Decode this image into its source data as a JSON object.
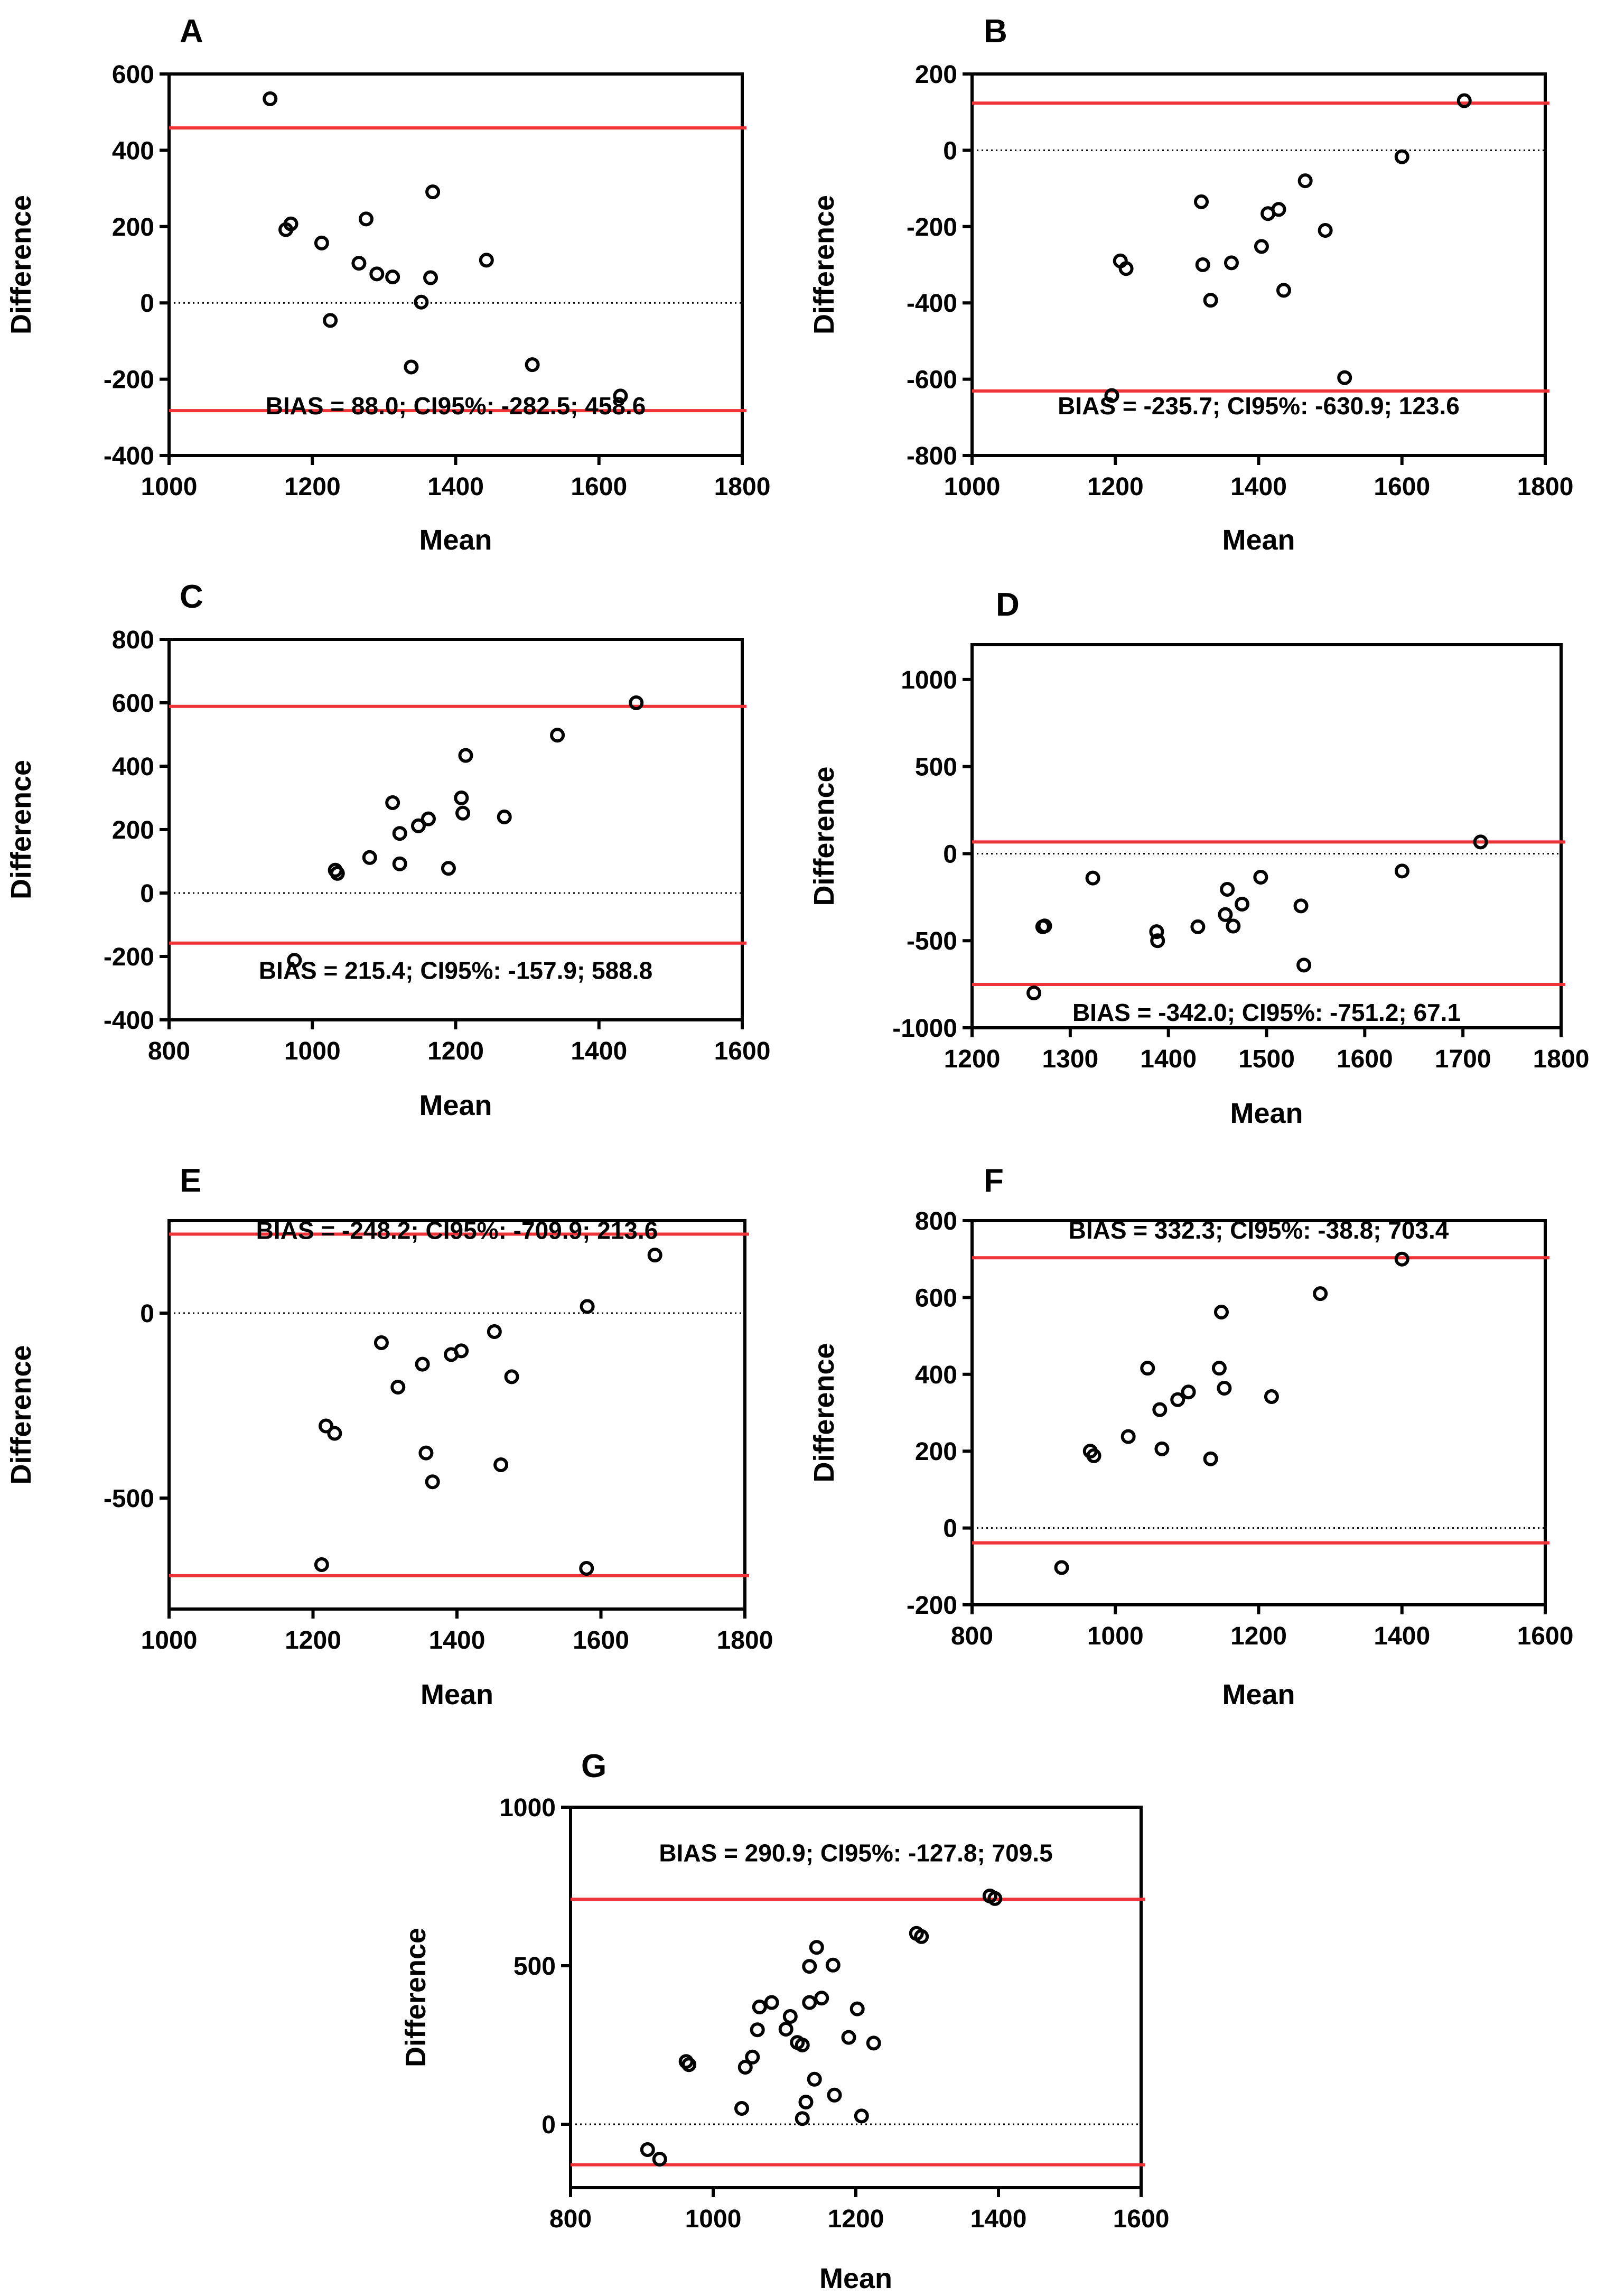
{
  "colors": {
    "axis": "#000000",
    "limit_line": "#ee3438",
    "point": "#000000",
    "background": "#ffffff"
  },
  "chart_data": [
    {
      "id": "A",
      "type": "scatter",
      "panel_label": "A",
      "xlabel": "Mean",
      "ylabel": "Difference",
      "xlim": [
        1000,
        1800
      ],
      "ylim": [
        -400,
        600
      ],
      "xticks": [
        1000,
        1200,
        1400,
        1600,
        1800
      ],
      "yticks": [
        -400,
        -200,
        0,
        200,
        400,
        600
      ],
      "bias": 88.0,
      "lower_loa": -282.5,
      "upper_loa": 458.6,
      "bias_text": "BIAS = 88.0; CI95%: -282.5; 458.6",
      "points": [
        [
          1141,
          535
        ],
        [
          1163,
          192
        ],
        [
          1170,
          207
        ],
        [
          1213,
          157
        ],
        [
          1225,
          -46
        ],
        [
          1265,
          104
        ],
        [
          1275,
          220
        ],
        [
          1290,
          76
        ],
        [
          1312,
          68
        ],
        [
          1338,
          -168
        ],
        [
          1352,
          2
        ],
        [
          1365,
          66
        ],
        [
          1368,
          291
        ],
        [
          1443,
          112
        ],
        [
          1507,
          -162
        ],
        [
          1630,
          -244
        ]
      ]
    },
    {
      "id": "B",
      "type": "scatter",
      "panel_label": "B",
      "xlabel": "Mean",
      "ylabel": "Difference",
      "xlim": [
        1000,
        1800
      ],
      "ylim": [
        -800,
        200
      ],
      "xticks": [
        1000,
        1200,
        1400,
        1600,
        1800
      ],
      "yticks": [
        -800,
        -600,
        -400,
        -200,
        0,
        200
      ],
      "bias": -235.7,
      "lower_loa": -630.9,
      "upper_loa": 123.6,
      "bias_text": "BIAS = -235.7; CI95%: -630.9; 123.6",
      "points": [
        [
          1195,
          -643
        ],
        [
          1207,
          -290
        ],
        [
          1215,
          -310
        ],
        [
          1320,
          -135
        ],
        [
          1322,
          -300
        ],
        [
          1333,
          -393
        ],
        [
          1362,
          -295
        ],
        [
          1404,
          -252
        ],
        [
          1413,
          -166
        ],
        [
          1428,
          -155
        ],
        [
          1435,
          -367
        ],
        [
          1465,
          -80
        ],
        [
          1493,
          -210
        ],
        [
          1520,
          -596
        ],
        [
          1600,
          -17
        ],
        [
          1687,
          130
        ]
      ]
    },
    {
      "id": "C",
      "type": "scatter",
      "panel_label": "C",
      "xlabel": "Mean",
      "ylabel": "Difference",
      "xlim": [
        800,
        1600
      ],
      "ylim": [
        -400,
        800
      ],
      "xticks": [
        800,
        1000,
        1200,
        1400,
        1600
      ],
      "yticks": [
        -400,
        -200,
        0,
        200,
        400,
        600,
        800
      ],
      "bias": 215.4,
      "lower_loa": -157.9,
      "upper_loa": 588.8,
      "bias_text": "BIAS = 215.4; CI95%: -157.9; 588.8",
      "points": [
        [
          975,
          -212
        ],
        [
          1032,
          72
        ],
        [
          1035,
          62
        ],
        [
          1080,
          112
        ],
        [
          1112,
          285
        ],
        [
          1122,
          92
        ],
        [
          1122,
          188
        ],
        [
          1148,
          212
        ],
        [
          1162,
          234
        ],
        [
          1190,
          78
        ],
        [
          1208,
          300
        ],
        [
          1210,
          252
        ],
        [
          1214,
          434
        ],
        [
          1268,
          240
        ],
        [
          1342,
          498
        ],
        [
          1452,
          600
        ]
      ]
    },
    {
      "id": "D",
      "type": "scatter",
      "panel_label": "D",
      "xlabel": "Mean",
      "ylabel": "Difference",
      "xlim": [
        1200,
        1800
      ],
      "ylim": [
        -1000,
        1200
      ],
      "xticks": [
        1200,
        1300,
        1400,
        1500,
        1600,
        1700,
        1800
      ],
      "yticks": [
        -1000,
        -500,
        0,
        500,
        1000
      ],
      "bias": -342.0,
      "lower_loa": -751.2,
      "upper_loa": 67.1,
      "bias_text": "BIAS = -342.0; CI95%: -751.2; 67.1",
      "points": [
        [
          1263,
          -800
        ],
        [
          1272,
          -420
        ],
        [
          1274,
          -415
        ],
        [
          1323,
          -140
        ],
        [
          1388,
          -448
        ],
        [
          1389,
          -500
        ],
        [
          1430,
          -420
        ],
        [
          1458,
          -350
        ],
        [
          1460,
          -205
        ],
        [
          1466,
          -416
        ],
        [
          1475,
          -290
        ],
        [
          1494,
          -135
        ],
        [
          1535,
          -300
        ],
        [
          1538,
          -640
        ],
        [
          1638,
          -100
        ],
        [
          1718,
          67
        ]
      ]
    },
    {
      "id": "E",
      "type": "scatter",
      "panel_label": "E",
      "xlabel": "Mean",
      "ylabel": "Difference",
      "xlim": [
        1000,
        1800
      ],
      "ylim": [
        -800,
        250
      ],
      "xticks": [
        1000,
        1200,
        1400,
        1600,
        1800
      ],
      "yticks": [
        -500,
        0
      ],
      "bias": -248.2,
      "lower_loa": -709.9,
      "upper_loa": 213.6,
      "bias_text": "BIAS = -248.2; CI95%: -709.9; 213.6",
      "points": [
        [
          1212,
          -680
        ],
        [
          1218,
          -305
        ],
        [
          1230,
          -325
        ],
        [
          1295,
          -80
        ],
        [
          1318,
          -200
        ],
        [
          1352,
          -138
        ],
        [
          1357,
          -378
        ],
        [
          1366,
          -456
        ],
        [
          1392,
          -112
        ],
        [
          1406,
          -102
        ],
        [
          1452,
          -50
        ],
        [
          1461,
          -410
        ],
        [
          1476,
          -172
        ],
        [
          1580,
          -690
        ],
        [
          1581,
          18
        ],
        [
          1675,
          157
        ]
      ]
    },
    {
      "id": "F",
      "type": "scatter",
      "panel_label": "F",
      "xlabel": "Mean",
      "ylabel": "Difference",
      "xlim": [
        800,
        1600
      ],
      "ylim": [
        -200,
        800
      ],
      "xticks": [
        800,
        1000,
        1200,
        1400,
        1600
      ],
      "yticks": [
        -200,
        0,
        200,
        400,
        600,
        800
      ],
      "bias": 332.3,
      "lower_loa": -38.8,
      "upper_loa": 703.4,
      "bias_text": "BIAS = 332.3; CI95%: -38.8; 703.4",
      "points": [
        [
          925,
          -103
        ],
        [
          965,
          200
        ],
        [
          970,
          188
        ],
        [
          1018,
          238
        ],
        [
          1045,
          416
        ],
        [
          1062,
          308
        ],
        [
          1065,
          206
        ],
        [
          1087,
          334
        ],
        [
          1102,
          354
        ],
        [
          1133,
          180
        ],
        [
          1145,
          416
        ],
        [
          1148,
          562
        ],
        [
          1152,
          364
        ],
        [
          1218,
          342
        ],
        [
          1286,
          610
        ],
        [
          1400,
          700
        ]
      ]
    },
    {
      "id": "G",
      "type": "scatter",
      "panel_label": "G",
      "xlabel": "Mean",
      "ylabel": "Difference",
      "xlim": [
        800,
        1600
      ],
      "ylim": [
        -200,
        1000
      ],
      "xticks": [
        800,
        1000,
        1200,
        1400,
        1600
      ],
      "yticks": [
        0,
        500,
        1000
      ],
      "bias": 290.9,
      "lower_loa": -127.8,
      "upper_loa": 709.5,
      "bias_text": "BIAS = 290.9; CI95%: -127.8; 709.5",
      "points": [
        [
          908,
          -80
        ],
        [
          925,
          -110
        ],
        [
          962,
          198
        ],
        [
          966,
          188
        ],
        [
          1040,
          50
        ],
        [
          1045,
          180
        ],
        [
          1055,
          212
        ],
        [
          1062,
          298
        ],
        [
          1065,
          370
        ],
        [
          1082,
          384
        ],
        [
          1102,
          300
        ],
        [
          1108,
          340
        ],
        [
          1118,
          258
        ],
        [
          1125,
          250
        ],
        [
          1125,
          18
        ],
        [
          1130,
          70
        ],
        [
          1135,
          498
        ],
        [
          1135,
          384
        ],
        [
          1142,
          142
        ],
        [
          1145,
          558
        ],
        [
          1152,
          398
        ],
        [
          1168,
          502
        ],
        [
          1170,
          92
        ],
        [
          1190,
          274
        ],
        [
          1202,
          364
        ],
        [
          1208,
          26
        ],
        [
          1225,
          256
        ],
        [
          1285,
          602
        ],
        [
          1292,
          592
        ],
        [
          1388,
          720
        ],
        [
          1395,
          712
        ]
      ]
    }
  ]
}
